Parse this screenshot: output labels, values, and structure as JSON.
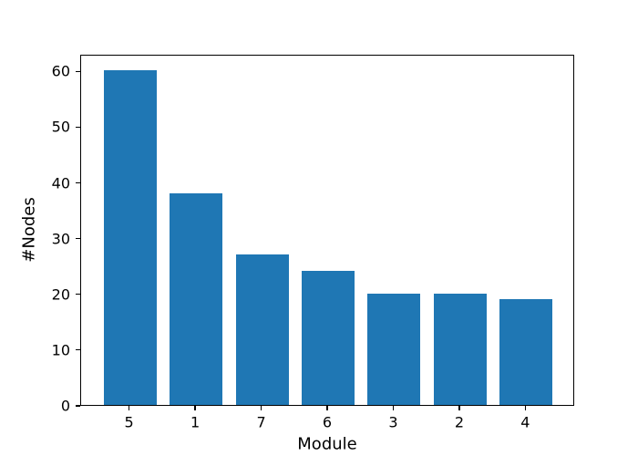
{
  "chart_data": {
    "type": "bar",
    "categories": [
      "5",
      "1",
      "7",
      "6",
      "3",
      "2",
      "4"
    ],
    "values": [
      60,
      38,
      27,
      24,
      20,
      20,
      19
    ],
    "title": "",
    "xlabel": "Module",
    "ylabel": "#Nodes",
    "yticks": [
      0,
      10,
      20,
      30,
      40,
      50,
      60
    ],
    "xlim": [
      -0.74,
      6.74
    ],
    "ylim": [
      0,
      63
    ],
    "bar_width": 0.8,
    "bar_color": "#1f77b4",
    "grid": false,
    "legend": "none"
  },
  "figure": {
    "background": "#ffffff",
    "spine_color": "#000000",
    "text_color": "#000000"
  }
}
